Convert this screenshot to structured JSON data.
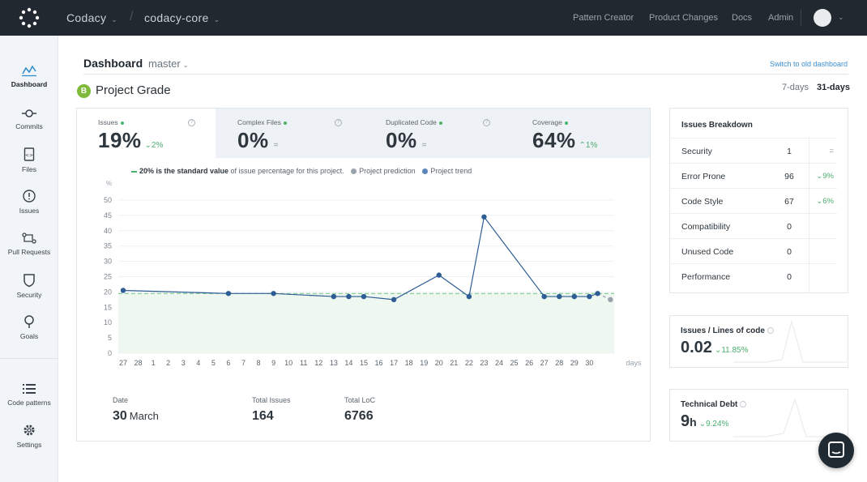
{
  "topbar": {
    "org": "Codacy",
    "separator": "/",
    "repo": "codacy-core",
    "links": [
      "Pattern Creator",
      "Product Changes",
      "Docs",
      "Admin"
    ]
  },
  "sidebar": {
    "items": [
      {
        "label": "Dashboard",
        "icon": "dashboard-icon"
      },
      {
        "label": "Commits",
        "icon": "commit-icon"
      },
      {
        "label": "Files",
        "icon": "file-icon"
      },
      {
        "label": "Issues",
        "icon": "alert-icon"
      },
      {
        "label": "Pull Requests",
        "icon": "pull-request-icon"
      },
      {
        "label": "Security",
        "icon": "shield-icon"
      },
      {
        "label": "Goals",
        "icon": "goal-icon"
      },
      {
        "label": "Code patterns",
        "icon": "list-icon"
      },
      {
        "label": "Settings",
        "icon": "gear-icon"
      }
    ]
  },
  "header": {
    "title": "Dashboard",
    "branch": "master",
    "old_dashboard_link": "Switch to old dashboard",
    "grade_letter": "B",
    "grade_title": "Project Grade",
    "range_options": [
      "7-days",
      "31-days"
    ],
    "range_selected": "31-days"
  },
  "metrics": [
    {
      "label": "Issues",
      "value": "19%",
      "delta": "⌄2%"
    },
    {
      "label": "Complex Files",
      "value": "0%",
      "delta": "="
    },
    {
      "label": "Duplicated Code",
      "value": "0%",
      "delta": "="
    },
    {
      "label": "Coverage",
      "value": "64%",
      "delta": "⌃1%"
    }
  ],
  "legend": {
    "standard_bold": "20% is the standard value",
    "standard_rest": " of issue percentage for this project.",
    "prediction": "Project prediction",
    "trend": "Project trend"
  },
  "chart_data": {
    "type": "line",
    "title": "",
    "ylabel": "%",
    "xlabel": "days",
    "ylim": [
      0,
      50
    ],
    "yticks": [
      0,
      5,
      10,
      15,
      20,
      25,
      30,
      35,
      40,
      45,
      50
    ],
    "categories": [
      "27",
      "28",
      "1",
      "2",
      "3",
      "4",
      "5",
      "6",
      "7",
      "8",
      "9",
      "10",
      "11",
      "12",
      "13",
      "14",
      "15",
      "16",
      "17",
      "18",
      "19",
      "20",
      "21",
      "22",
      "23",
      "24",
      "25",
      "26",
      "27",
      "28",
      "29",
      "30"
    ],
    "standard_value": 19.5,
    "series": [
      {
        "name": "Project trend",
        "points": [
          {
            "x": "27",
            "y": 20.5
          },
          {
            "x": "6",
            "y": 19.5
          },
          {
            "x": "9",
            "y": 19.5
          },
          {
            "x": "13",
            "y": 18.5
          },
          {
            "x": "14",
            "y": 18.5
          },
          {
            "x": "15",
            "y": 18.5
          },
          {
            "x": "17",
            "y": 17.5
          },
          {
            "x": "20",
            "y": 25.5
          },
          {
            "x": "22",
            "y": 18.5
          },
          {
            "x": "23",
            "y": 44.5
          },
          {
            "x": "27",
            "y": 18.5,
            "i": 28
          },
          {
            "x": "28",
            "y": 18.5,
            "i": 29
          },
          {
            "x": "29",
            "y": 18.5
          },
          {
            "x": "30",
            "y": 18.5
          },
          {
            "x": "30+",
            "y": 19.5
          }
        ]
      },
      {
        "name": "Project prediction",
        "points": [
          {
            "x": "30+",
            "y": 19.5
          },
          {
            "x": "31",
            "y": 17.5
          }
        ]
      }
    ]
  },
  "stats": {
    "date_label": "Date",
    "date_day": "30",
    "date_month": "March",
    "issues_label": "Total Issues",
    "issues_value": "164",
    "loc_label": "Total LoC",
    "loc_value": "6766"
  },
  "breakdown": {
    "title": "Issues Breakdown",
    "rows": [
      {
        "name": "Security",
        "count": "1",
        "change": "="
      },
      {
        "name": "Error Prone",
        "count": "96",
        "change": "⌄9%"
      },
      {
        "name": "Code Style",
        "count": "67",
        "change": "⌄6%"
      },
      {
        "name": "Compatibility",
        "count": "0",
        "change": ""
      },
      {
        "name": "Unused Code",
        "count": "0",
        "change": ""
      },
      {
        "name": "Performance",
        "count": "0",
        "change": ""
      }
    ]
  },
  "issues_per_loc": {
    "title": "Issues / Lines of code",
    "value": "0.02",
    "delta": "⌄11.85%"
  },
  "tech_debt": {
    "title": "Technical Debt",
    "value": "9",
    "unit": "h",
    "delta": "⌄9.24%"
  },
  "colors": {
    "topbar": "#22282f",
    "accent": "#46b56b",
    "trend": "#2e5d95",
    "prediction": "#9aa3ab",
    "link": "#3b8fd0"
  }
}
